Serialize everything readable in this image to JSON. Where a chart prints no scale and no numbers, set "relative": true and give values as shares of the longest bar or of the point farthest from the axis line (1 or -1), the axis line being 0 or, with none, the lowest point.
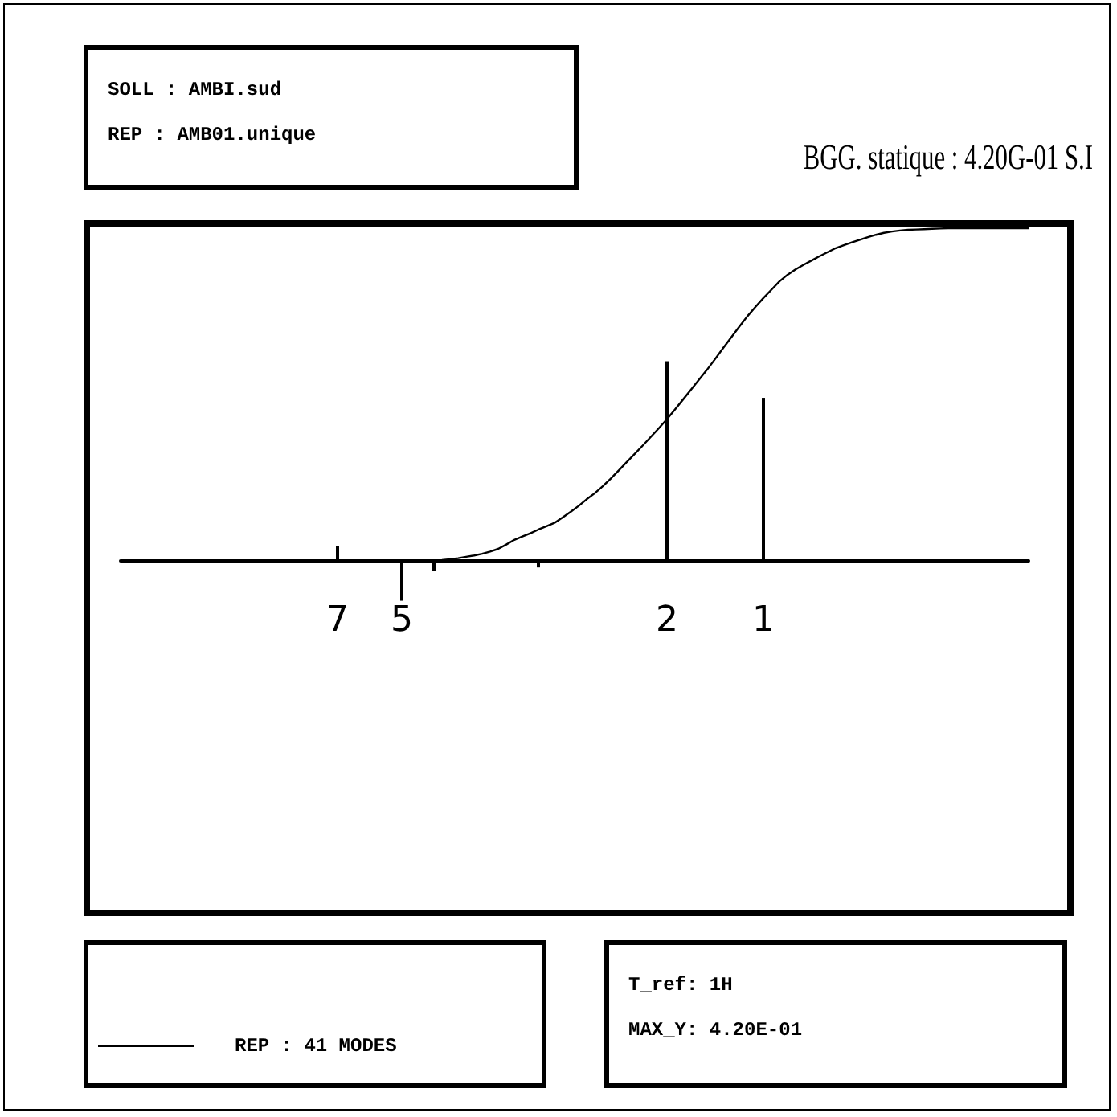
{
  "chart_data": {
    "type": "line",
    "title": "BGG. statique : 4.20G-01 S.I",
    "relative": true,
    "legend": "bottom left",
    "marker": "none",
    "grid": false,
    "annotations": [
      "SOLL : AMBI.sud",
      "REP : AMB01.unique",
      "T_ref: 1H",
      "MAX_Y: 4.20E-01"
    ],
    "categories": [
      null,
      null,
      null,
      null,
      null,
      null,
      null,
      null,
      null,
      null,
      null,
      null,
      null,
      null,
      null,
      null,
      null,
      null,
      null,
      null,
      null,
      null,
      null,
      null,
      null,
      null,
      null,
      "7",
      null,
      null,
      null,
      null,
      null,
      null,
      null,
      "5",
      null,
      null,
      null,
      null,
      null,
      null,
      null,
      null,
      null,
      null,
      null,
      null,
      null,
      null,
      null,
      null,
      null,
      null,
      null,
      null,
      null,
      null,
      null,
      null,
      null,
      null,
      null,
      null,
      null,
      null,
      null,
      null,
      "2",
      null,
      null,
      null,
      null,
      null,
      null,
      null,
      null,
      null,
      null,
      null,
      "1",
      null,
      null,
      null,
      null,
      null,
      null,
      null,
      null,
      null,
      null,
      null,
      null,
      null,
      null,
      null,
      null,
      null,
      null,
      null,
      null,
      null,
      null,
      null,
      null,
      null,
      null,
      null,
      null,
      null,
      null,
      null,
      null,
      null
    ],
    "series": [
      {
        "name": "REP : 41 MODES",
        "color": "#000000",
        "values": [
          null,
          null,
          null,
          null,
          null,
          null,
          null,
          null,
          null,
          null,
          null,
          null,
          null,
          null,
          null,
          null,
          null,
          null,
          null,
          null,
          null,
          null,
          null,
          null,
          null,
          null,
          null,
          null,
          null,
          null,
          null,
          null,
          null,
          null,
          null,
          null,
          null,
          null,
          null,
          0,
          0.002,
          0.005,
          0.008,
          0.012,
          0.016,
          0.021,
          0.028,
          0.036,
          0.049,
          0.063,
          0.073,
          0.083,
          0.094,
          0.104,
          0.114,
          0.13,
          0.147,
          0.165,
          0.185,
          0.203,
          0.224,
          0.247,
          0.272,
          0.297,
          0.322,
          0.347,
          0.373,
          0.399,
          0.426,
          0.455,
          0.485,
          0.515,
          0.545,
          0.575,
          0.607,
          0.64,
          0.672,
          0.704,
          0.735,
          0.763,
          0.79,
          0.815,
          0.84,
          0.86,
          0.876,
          0.89,
          0.903,
          0.916,
          0.928,
          0.94,
          0.949,
          0.957,
          0.965,
          0.973,
          0.98,
          0.986,
          0.99,
          0.993,
          0.995,
          0.996,
          0.997,
          0.998,
          0.999,
          1,
          1,
          1,
          1,
          1,
          1,
          1,
          1,
          1,
          1,
          1
        ]
      },
      {
        "type": "bar",
        "color": "#000000",
        "values": [
          null,
          null,
          null,
          null,
          null,
          null,
          null,
          null,
          null,
          null,
          null,
          null,
          null,
          null,
          null,
          null,
          null,
          null,
          null,
          null,
          null,
          null,
          null,
          null,
          null,
          null,
          null,
          0.045,
          null,
          null,
          null,
          null,
          null,
          null,
          null,
          -0.12,
          null,
          null,
          null,
          -0.03,
          null,
          null,
          null,
          null,
          null,
          null,
          null,
          null,
          null,
          null,
          null,
          null,
          -0.02,
          null,
          null,
          null,
          null,
          null,
          null,
          null,
          null,
          null,
          null,
          null,
          null,
          null,
          null,
          null,
          0.6,
          null,
          null,
          null,
          null,
          null,
          null,
          null,
          null,
          null,
          null,
          null,
          0.49,
          null,
          null,
          null,
          null,
          null,
          null,
          null,
          null,
          null,
          null,
          null,
          null,
          null,
          null,
          null,
          null,
          null,
          null,
          null,
          null,
          null,
          null,
          null,
          null,
          null,
          null,
          null,
          null,
          null,
          null,
          null,
          null,
          null
        ]
      }
    ]
  }
}
